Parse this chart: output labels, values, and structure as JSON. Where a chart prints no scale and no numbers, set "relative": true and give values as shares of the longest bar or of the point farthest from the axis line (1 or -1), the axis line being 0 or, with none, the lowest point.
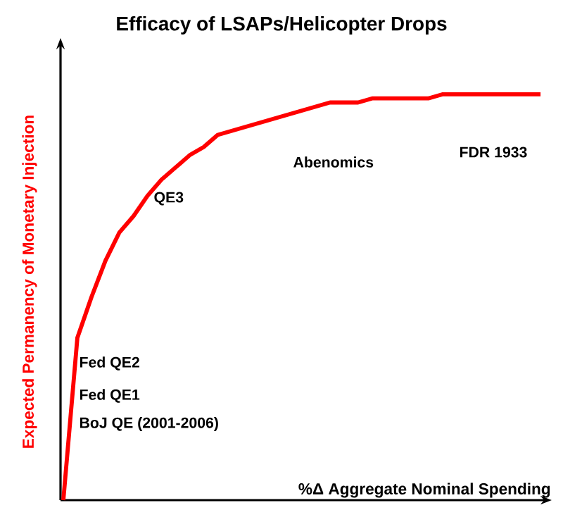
{
  "chart_data": {
    "type": "line",
    "title": "Efficacy of LSAPs/Helicopter Drops",
    "xlabel": "%Δ Aggregate Nominal Spending",
    "ylabel": "Expected Permanency of Monetary Injection",
    "relative": true,
    "marker": "none",
    "line_style": "solid",
    "categories": [
      null,
      null,
      null,
      null,
      null,
      null,
      null,
      null,
      null,
      null,
      null,
      null,
      null,
      null,
      null,
      null,
      null,
      null,
      null,
      null,
      null,
      null,
      null,
      null,
      null,
      null,
      null,
      null,
      null,
      null,
      null,
      null,
      null,
      null,
      null
    ],
    "series": [
      {
        "color": "#ff0000",
        "values": [
          0,
          0.4,
          0.5,
          0.59,
          0.66,
          0.7,
          0.75,
          0.79,
          0.82,
          0.85,
          0.87,
          0.9,
          0.91,
          0.92,
          0.93,
          0.94,
          0.95,
          0.96,
          0.97,
          0.98,
          0.98,
          0.98,
          0.99,
          0.99,
          0.99,
          0.99,
          0.99,
          1.0,
          1.0,
          1.0,
          1.0,
          1.0,
          1.0,
          1.0,
          1.0
        ]
      }
    ],
    "annotations": [
      "Fed QE2",
      "Fed QE1",
      "BoJ QE (2001-2006)",
      "QE3",
      "Abenomics",
      "FDR 1933"
    ]
  }
}
